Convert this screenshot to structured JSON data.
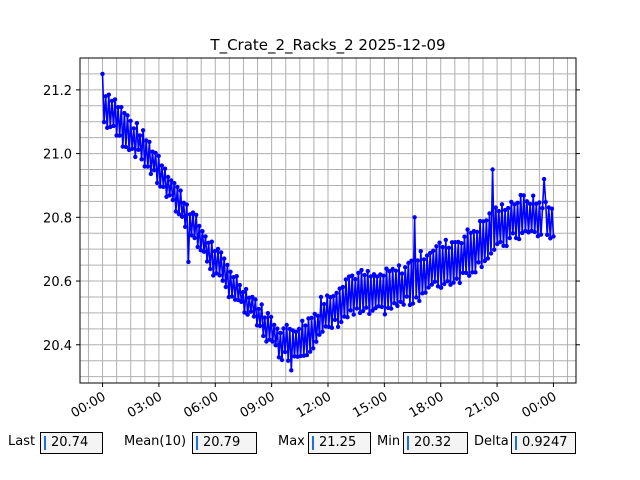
{
  "chart_data": {
    "type": "line",
    "title": "T_Crate_2_Racks_2 2025-12-09",
    "xlabel": "",
    "ylabel": "",
    "x_ticks": [
      "00:00",
      "03:00",
      "06:00",
      "09:00",
      "12:00",
      "15:00",
      "18:00",
      "21:00",
      "00:00"
    ],
    "x_tick_hours": [
      0,
      3,
      6,
      9,
      12,
      15,
      18,
      21,
      24
    ],
    "y_ticks": [
      "20.4",
      "20.6",
      "20.8",
      "21.0",
      "21.2"
    ],
    "y_tick_values": [
      20.4,
      20.6,
      20.8,
      21.0,
      21.2
    ],
    "xlim_hours": [
      -1.2,
      25.2
    ],
    "ylim": [
      20.28,
      21.3
    ],
    "grid": true,
    "series_color": "#0000ff",
    "series": [
      {
        "name": "",
        "x_hours": [
          0.0,
          0.5,
          1.0,
          1.5,
          2.0,
          2.5,
          3.0,
          3.5,
          4.0,
          4.5,
          5.0,
          5.5,
          6.0,
          6.5,
          7.0,
          7.5,
          8.0,
          8.5,
          9.0,
          9.5,
          10.0,
          10.5,
          11.0,
          11.5,
          12.0,
          12.5,
          13.0,
          13.5,
          14.0,
          14.5,
          15.0,
          15.5,
          16.0,
          16.5,
          17.0,
          17.5,
          18.0,
          18.5,
          19.0,
          19.5,
          20.0,
          20.5,
          21.0,
          21.5,
          22.0,
          22.5,
          23.0,
          23.5,
          24.0
        ],
        "lows": [
          21.1,
          21.08,
          21.04,
          21.02,
          20.99,
          20.95,
          20.91,
          20.86,
          20.82,
          20.77,
          20.72,
          20.67,
          20.62,
          20.58,
          20.55,
          20.51,
          20.48,
          20.44,
          20.4,
          20.37,
          20.36,
          20.37,
          20.39,
          20.42,
          20.45,
          20.47,
          20.49,
          20.5,
          20.5,
          20.5,
          20.51,
          20.52,
          20.53,
          20.54,
          20.56,
          20.58,
          20.59,
          20.6,
          20.61,
          20.63,
          20.65,
          20.68,
          20.7,
          20.72,
          20.74,
          20.75,
          20.75,
          20.74,
          20.73
        ],
        "highs": [
          21.2,
          21.18,
          21.14,
          21.1,
          21.07,
          21.03,
          20.99,
          20.94,
          20.89,
          20.84,
          20.79,
          20.74,
          20.7,
          20.66,
          20.62,
          20.58,
          20.55,
          20.51,
          20.48,
          20.45,
          20.45,
          20.46,
          20.48,
          20.51,
          20.55,
          20.58,
          20.61,
          20.62,
          20.62,
          20.61,
          20.62,
          20.63,
          20.64,
          20.66,
          20.68,
          20.7,
          20.71,
          20.72,
          20.73,
          20.75,
          20.77,
          20.8,
          20.82,
          20.84,
          20.85,
          20.86,
          20.85,
          20.84,
          20.82
        ]
      }
    ]
  },
  "stats": {
    "last": {
      "label": "Last",
      "value": "20.74"
    },
    "mean": {
      "label": "Mean(10)",
      "value": "20.79"
    },
    "max": {
      "label": "Max",
      "value": "21.25"
    },
    "min": {
      "label": "Min",
      "value": "20.32"
    },
    "delta": {
      "label": "Delta",
      "value": "0.9247"
    }
  }
}
